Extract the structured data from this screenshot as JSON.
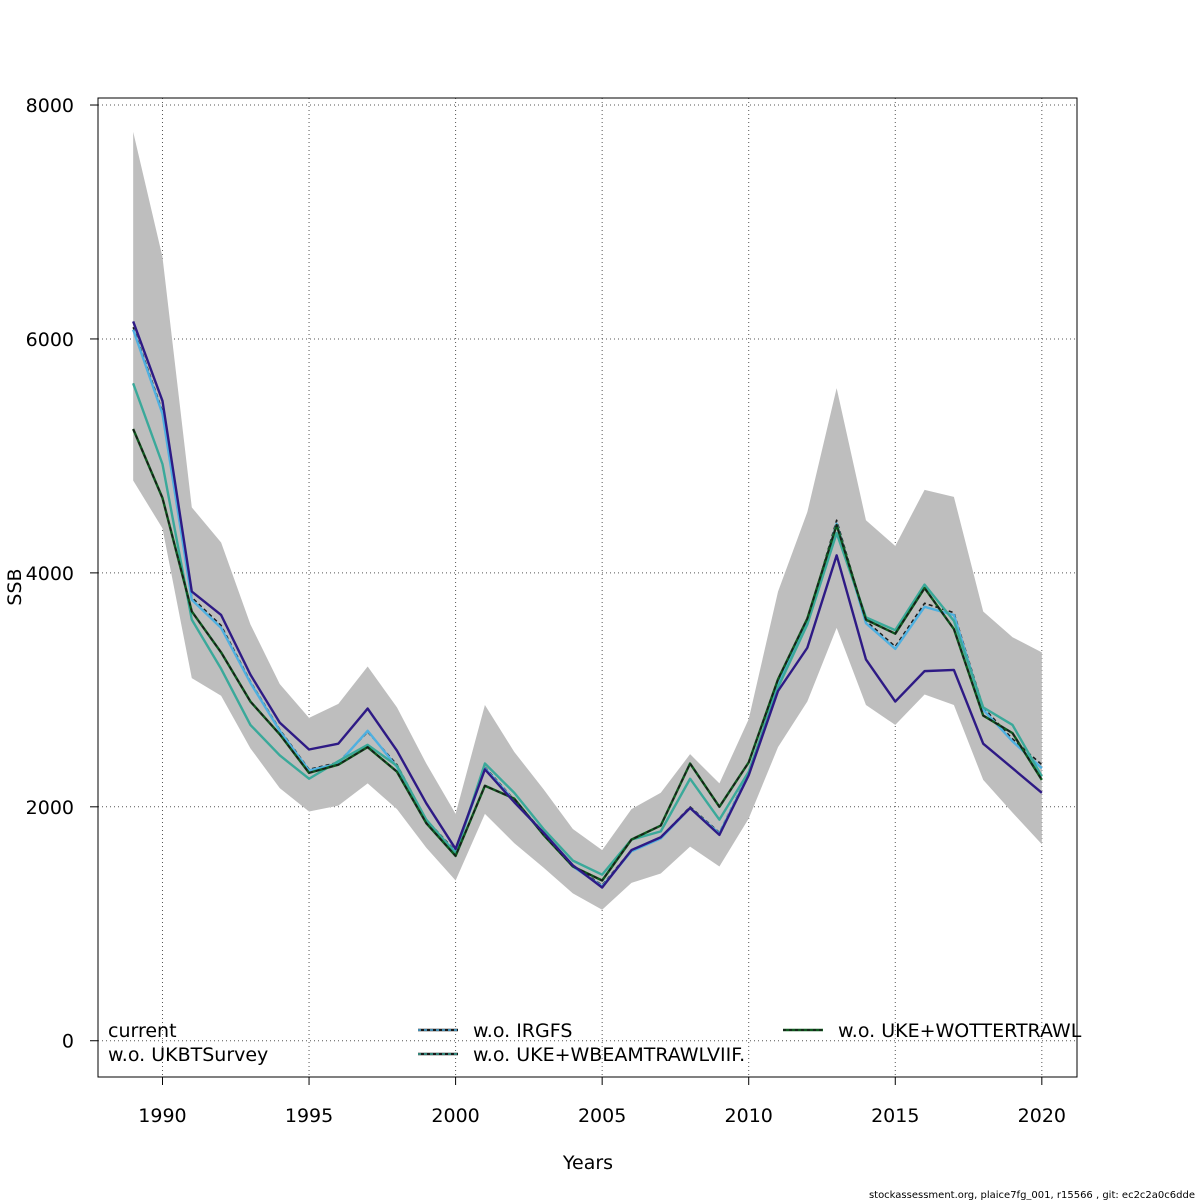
{
  "chart_data": {
    "type": "line",
    "xlabel": "Years",
    "ylabel": "SSB",
    "xlim": [
      1987.8,
      2021.2
    ],
    "ylim": [
      -310,
      8060
    ],
    "x_ticks": [
      1990,
      1995,
      2000,
      2005,
      2010,
      2015,
      2020
    ],
    "x_tick_labels": [
      "1990",
      "1995",
      "2000",
      "2005",
      "2010",
      "2015",
      "2020"
    ],
    "y_ticks": [
      0,
      2000,
      4000,
      6000,
      8000
    ],
    "y_tick_labels": [
      "0",
      "2000",
      "4000",
      "6000",
      "8000"
    ],
    "grid": true,
    "legend_placement": "bottom",
    "x": [
      1989,
      1990,
      1991,
      1992,
      1993,
      1994,
      1995,
      1996,
      1997,
      1998,
      1999,
      2000,
      2001,
      2002,
      2003,
      2004,
      2005,
      2006,
      2007,
      2008,
      2009,
      2010,
      2011,
      2012,
      2013,
      2014,
      2015,
      2016,
      2017,
      2018,
      2019,
      2020
    ],
    "confidence_band": {
      "color": "#BEBEBE",
      "upper": [
        7770,
        6700,
        4560,
        4260,
        3560,
        3050,
        2760,
        2880,
        3200,
        2850,
        2370,
        1940,
        2870,
        2470,
        2150,
        1810,
        1630,
        1980,
        2120,
        2450,
        2200,
        2750,
        3840,
        4520,
        5580,
        4450,
        4230,
        4710,
        4650,
        3670,
        3450,
        3320
      ],
      "lower": [
        4790,
        4380,
        3100,
        2950,
        2500,
        2160,
        1960,
        2010,
        2200,
        1980,
        1650,
        1370,
        1940,
        1690,
        1480,
        1260,
        1120,
        1350,
        1430,
        1660,
        1490,
        1900,
        2510,
        2900,
        3530,
        2870,
        2700,
        2960,
        2870,
        2230,
        1950,
        1680
      ]
    },
    "series": [
      {
        "name": "current",
        "color": "#2E1A85",
        "dash": "",
        "values": [
          6150,
          5470,
          3840,
          3640,
          3130,
          2720,
          2490,
          2540,
          2840,
          2480,
          2030,
          1640,
          2320,
          2040,
          1780,
          1500,
          1310,
          1630,
          1740,
          1990,
          1760,
          2270,
          2990,
          3360,
          4150,
          3260,
          2900,
          3160,
          3170,
          2540,
          2330,
          2120
        ]
      },
      {
        "name": "w.o. IRGFS",
        "color": "#1A1A1A",
        "dash": "4,3",
        "values": [
          6100,
          5380,
          3790,
          3550,
          3070,
          2660,
          2320,
          2380,
          2640,
          2360,
          1890,
          1620,
          2340,
          2060,
          1780,
          1500,
          1330,
          1630,
          1740,
          2000,
          1780,
          2290,
          3060,
          3590,
          4450,
          3590,
          3370,
          3740,
          3660,
          2850,
          2580,
          2360
        ]
      },
      {
        "name": "w.o. IRGFS",
        "color": "#4FB0E0",
        "dash": "",
        "values": [
          6080,
          5360,
          3770,
          3530,
          3060,
          2650,
          2310,
          2370,
          2650,
          2340,
          1880,
          1610,
          2330,
          2050,
          1770,
          1490,
          1320,
          1620,
          1730,
          1990,
          1770,
          2280,
          3040,
          3570,
          4420,
          3570,
          3350,
          3710,
          3640,
          2830,
          2560,
          2330
        ]
      },
      {
        "name": "w.o. UKE+WBEAMTRAWLVIIF.",
        "color": "#1A1A1A",
        "dash": "4,3",
        "values": [
          5620,
          4930,
          3600,
          3180,
          2700,
          2440,
          2240,
          2390,
          2530,
          2350,
          1890,
          1600,
          2370,
          2120,
          1810,
          1540,
          1420,
          1720,
          1790,
          2240,
          1890,
          2300,
          3020,
          3560,
          4340,
          3620,
          3510,
          3900,
          3590,
          2850,
          2700,
          2260
        ]
      },
      {
        "name": "w.o. UKE+WBEAMTRAWLVIIF.",
        "color": "#3AA99A",
        "dash": "",
        "values": [
          5620,
          4930,
          3600,
          3180,
          2700,
          2440,
          2240,
          2390,
          2530,
          2350,
          1890,
          1600,
          2370,
          2120,
          1810,
          1540,
          1420,
          1720,
          1790,
          2240,
          1890,
          2300,
          3020,
          3560,
          4340,
          3620,
          3510,
          3900,
          3590,
          2850,
          2700,
          2260
        ]
      },
      {
        "name": "w.o. UKE+WOTTERTRAWL",
        "color": "#0E5A1E",
        "dash": "",
        "values": [
          5230,
          4640,
          3670,
          3320,
          2900,
          2620,
          2290,
          2360,
          2510,
          2300,
          1860,
          1580,
          2180,
          2070,
          1760,
          1490,
          1370,
          1720,
          1840,
          2370,
          2000,
          2380,
          3090,
          3610,
          4410,
          3600,
          3480,
          3870,
          3520,
          2780,
          2630,
          2230
        ]
      },
      {
        "name": "w.o. UKE+WOTTERTRAWL",
        "color": "#1A1A1A",
        "dash": "4,3",
        "values": [
          5230,
          4640,
          3670,
          3320,
          2900,
          2620,
          2290,
          2360,
          2510,
          2300,
          1860,
          1580,
          2180,
          2070,
          1760,
          1490,
          1370,
          1720,
          1840,
          2370,
          2000,
          2380,
          3090,
          3610,
          4410,
          3600,
          3480,
          3870,
          3520,
          2780,
          2630,
          2230
        ]
      }
    ],
    "legend": [
      {
        "label": "current",
        "line_color": "",
        "dash_color": ""
      },
      {
        "label": "w.o. UKBTSurvey",
        "line_color": "",
        "dash_color": ""
      },
      {
        "label": "w.o. IRGFS",
        "line_color": "#1A1A1A",
        "dash_color": "#4FB0E0"
      },
      {
        "label": "w.o. UKE+WBEAMTRAWLVIIF.",
        "line_color": "#1A1A1A",
        "dash_color": "#3AA99A"
      },
      {
        "label": "w.o. UKE+WOTTERTRAWL",
        "line_color": "#0E5A1E",
        "dash_color": "#1A1A1A"
      }
    ]
  },
  "footer": "stockassessment.org, plaice7fg_001, r15566 , git: ec2c2a0c6dde"
}
